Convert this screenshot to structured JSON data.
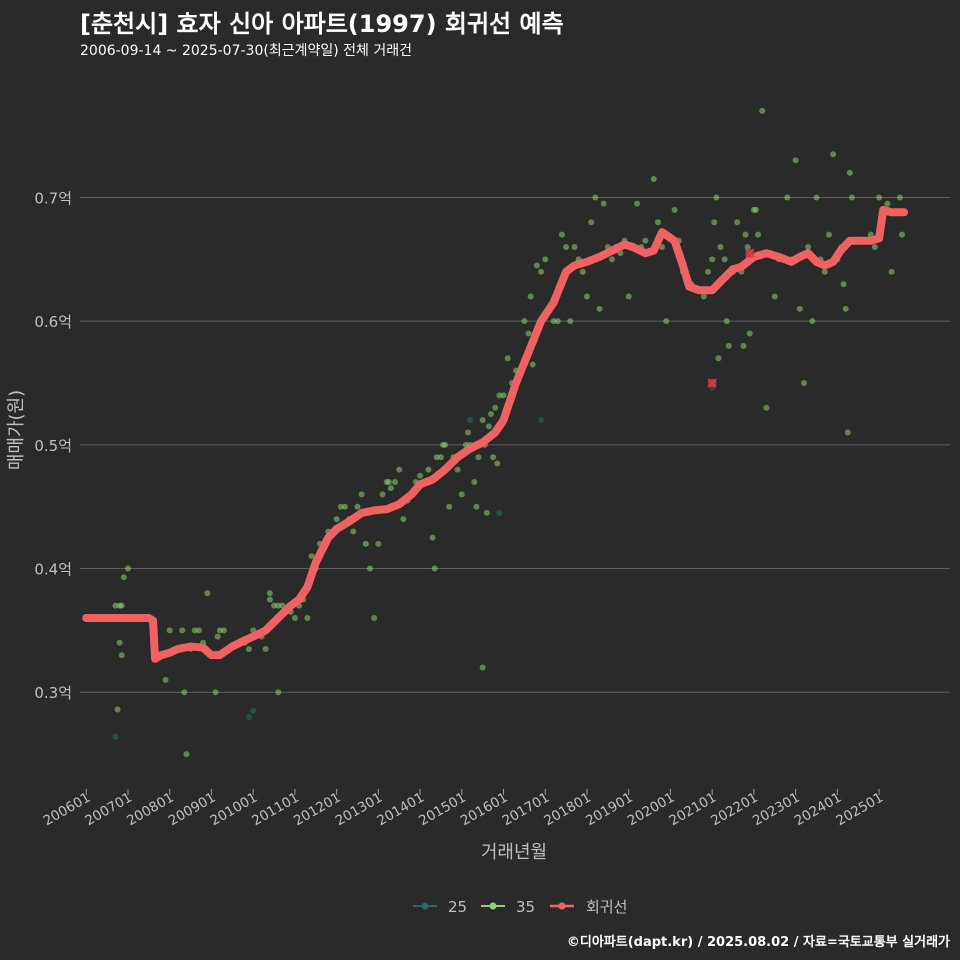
{
  "header": {
    "title": "[춘천시] 효자 신아 아파트(1997) 회귀선 예측",
    "subtitle": "2006-09-14 ~ 2025-07-30(최근계약일) 전체 거래건"
  },
  "footer": {
    "credit": "©디아파트(dapt.kr) / 2025.08.02 / 자료=국토교통부 실거래가"
  },
  "colors": {
    "background": "#2b2a2b",
    "grid": "#5e5e5e",
    "text": "#bfbfbf",
    "s25": "#1f6e68",
    "s35": "#8ad26a",
    "regression": "#f06262"
  },
  "chart_data": {
    "type": "scatter",
    "title": "[춘천시] 효자 신아 아파트(1997) 회귀선 예측",
    "xlabel": "거래년월",
    "ylabel": "매매가(원)",
    "xlim": [
      2005.85,
      2026.7
    ],
    "ylim": [
      0.225,
      0.795
    ],
    "y_ticks": [
      0.3,
      0.4,
      0.5,
      0.6,
      0.7
    ],
    "y_tick_labels": [
      "0.3억",
      "0.4억",
      "0.5억",
      "0.6억",
      "0.7억"
    ],
    "x_ticks": [
      2006,
      2007,
      2008,
      2009,
      2010,
      2011,
      2012,
      2013,
      2014,
      2015,
      2016,
      2017,
      2018,
      2019,
      2020,
      2021,
      2022,
      2023,
      2024,
      2025
    ],
    "x_tick_labels": [
      "200601",
      "200701",
      "200801",
      "200901",
      "201001",
      "201101",
      "201201",
      "201301",
      "201401",
      "201501",
      "201601",
      "201701",
      "201801",
      "201901",
      "202001",
      "202101",
      "202201",
      "202301",
      "202401",
      "202501"
    ],
    "legend_position": "bottom",
    "legend": [
      "25",
      "35",
      "회귀선"
    ],
    "series": [
      {
        "name": "25",
        "points": [
          [
            2006.7,
            0.264
          ],
          [
            2009.9,
            0.28
          ],
          [
            2010.0,
            0.285
          ],
          [
            2012.7,
            0.42
          ],
          [
            2015.2,
            0.52
          ],
          [
            2015.9,
            0.445
          ],
          [
            2016.9,
            0.52
          ],
          [
            2021.0,
            0.546
          ]
        ]
      },
      {
        "name": "35",
        "points": [
          [
            2006.7,
            0.37
          ],
          [
            2006.8,
            0.37
          ],
          [
            2006.75,
            0.286
          ],
          [
            2006.8,
            0.34
          ],
          [
            2006.85,
            0.37
          ],
          [
            2006.85,
            0.33
          ],
          [
            2006.9,
            0.393
          ],
          [
            2007.0,
            0.4
          ],
          [
            2007.6,
            0.35
          ],
          [
            2007.9,
            0.31
          ],
          [
            2008.0,
            0.35
          ],
          [
            2008.3,
            0.35
          ],
          [
            2008.35,
            0.3
          ],
          [
            2008.4,
            0.25
          ],
          [
            2008.5,
            0.335
          ],
          [
            2008.6,
            0.35
          ],
          [
            2008.7,
            0.35
          ],
          [
            2008.8,
            0.34
          ],
          [
            2008.9,
            0.38
          ],
          [
            2009.0,
            0.33
          ],
          [
            2009.1,
            0.3
          ],
          [
            2009.15,
            0.345
          ],
          [
            2009.2,
            0.35
          ],
          [
            2009.3,
            0.35
          ],
          [
            2009.8,
            0.34
          ],
          [
            2009.9,
            0.335
          ],
          [
            2010.0,
            0.35
          ],
          [
            2010.2,
            0.345
          ],
          [
            2010.3,
            0.335
          ],
          [
            2010.4,
            0.38
          ],
          [
            2010.4,
            0.375
          ],
          [
            2010.5,
            0.37
          ],
          [
            2010.6,
            0.37
          ],
          [
            2010.6,
            0.3
          ],
          [
            2010.7,
            0.37
          ],
          [
            2010.9,
            0.365
          ],
          [
            2011.0,
            0.36
          ],
          [
            2011.1,
            0.37
          ],
          [
            2011.2,
            0.375
          ],
          [
            2011.3,
            0.36
          ],
          [
            2011.4,
            0.41
          ],
          [
            2011.5,
            0.4
          ],
          [
            2011.6,
            0.42
          ],
          [
            2011.8,
            0.43
          ],
          [
            2011.9,
            0.43
          ],
          [
            2012.0,
            0.44
          ],
          [
            2012.1,
            0.45
          ],
          [
            2012.2,
            0.45
          ],
          [
            2012.3,
            0.44
          ],
          [
            2012.4,
            0.43
          ],
          [
            2012.5,
            0.45
          ],
          [
            2012.6,
            0.46
          ],
          [
            2012.7,
            0.42
          ],
          [
            2012.8,
            0.4
          ],
          [
            2012.9,
            0.36
          ],
          [
            2013.0,
            0.42
          ],
          [
            2013.1,
            0.46
          ],
          [
            2013.2,
            0.47
          ],
          [
            2013.25,
            0.47
          ],
          [
            2013.3,
            0.465
          ],
          [
            2013.4,
            0.47
          ],
          [
            2013.5,
            0.48
          ],
          [
            2013.6,
            0.44
          ],
          [
            2013.7,
            0.455
          ],
          [
            2013.8,
            0.46
          ],
          [
            2013.9,
            0.47
          ],
          [
            2014.0,
            0.475
          ],
          [
            2014.1,
            0.47
          ],
          [
            2014.2,
            0.48
          ],
          [
            2014.3,
            0.425
          ],
          [
            2014.35,
            0.4
          ],
          [
            2014.4,
            0.49
          ],
          [
            2014.5,
            0.49
          ],
          [
            2014.55,
            0.5
          ],
          [
            2014.6,
            0.5
          ],
          [
            2014.7,
            0.45
          ],
          [
            2014.8,
            0.49
          ],
          [
            2014.9,
            0.48
          ],
          [
            2015.0,
            0.46
          ],
          [
            2015.1,
            0.5
          ],
          [
            2015.15,
            0.51
          ],
          [
            2015.2,
            0.5
          ],
          [
            2015.3,
            0.47
          ],
          [
            2015.35,
            0.45
          ],
          [
            2015.4,
            0.49
          ],
          [
            2015.5,
            0.52
          ],
          [
            2015.5,
            0.32
          ],
          [
            2015.55,
            0.5
          ],
          [
            2015.6,
            0.445
          ],
          [
            2015.65,
            0.515
          ],
          [
            2015.7,
            0.525
          ],
          [
            2015.75,
            0.49
          ],
          [
            2015.8,
            0.53
          ],
          [
            2015.85,
            0.485
          ],
          [
            2015.9,
            0.54
          ],
          [
            2016.0,
            0.54
          ],
          [
            2016.1,
            0.57
          ],
          [
            2016.2,
            0.55
          ],
          [
            2016.3,
            0.56
          ],
          [
            2016.5,
            0.6
          ],
          [
            2016.6,
            0.59
          ],
          [
            2016.65,
            0.62
          ],
          [
            2016.7,
            0.565
          ],
          [
            2016.8,
            0.645
          ],
          [
            2016.9,
            0.64
          ],
          [
            2017.0,
            0.65
          ],
          [
            2017.1,
            0.61
          ],
          [
            2017.2,
            0.6
          ],
          [
            2017.3,
            0.6
          ],
          [
            2017.4,
            0.67
          ],
          [
            2017.5,
            0.66
          ],
          [
            2017.6,
            0.6
          ],
          [
            2017.7,
            0.66
          ],
          [
            2017.8,
            0.65
          ],
          [
            2017.9,
            0.64
          ],
          [
            2018.0,
            0.62
          ],
          [
            2018.1,
            0.68
          ],
          [
            2018.2,
            0.7
          ],
          [
            2018.3,
            0.61
          ],
          [
            2018.4,
            0.695
          ],
          [
            2018.5,
            0.66
          ],
          [
            2018.6,
            0.65
          ],
          [
            2018.7,
            0.66
          ],
          [
            2018.8,
            0.655
          ],
          [
            2018.9,
            0.665
          ],
          [
            2019.0,
            0.62
          ],
          [
            2019.1,
            0.66
          ],
          [
            2019.2,
            0.695
          ],
          [
            2019.3,
            0.66
          ],
          [
            2019.4,
            0.665
          ],
          [
            2019.6,
            0.715
          ],
          [
            2019.7,
            0.68
          ],
          [
            2019.8,
            0.66
          ],
          [
            2019.9,
            0.6
          ],
          [
            2020.1,
            0.69
          ],
          [
            2020.2,
            0.665
          ],
          [
            2020.3,
            0.64
          ],
          [
            2020.5,
            0.63
          ],
          [
            2020.6,
            0.625
          ],
          [
            2020.8,
            0.62
          ],
          [
            2020.9,
            0.64
          ],
          [
            2021.0,
            0.65
          ],
          [
            2021.05,
            0.68
          ],
          [
            2021.1,
            0.7
          ],
          [
            2021.15,
            0.57
          ],
          [
            2021.2,
            0.66
          ],
          [
            2021.3,
            0.65
          ],
          [
            2021.35,
            0.6
          ],
          [
            2021.4,
            0.58
          ],
          [
            2021.5,
            0.64
          ],
          [
            2021.6,
            0.68
          ],
          [
            2021.7,
            0.64
          ],
          [
            2021.75,
            0.58
          ],
          [
            2021.8,
            0.67
          ],
          [
            2021.85,
            0.66
          ],
          [
            2021.9,
            0.59
          ],
          [
            2022.0,
            0.69
          ],
          [
            2022.05,
            0.69
          ],
          [
            2022.1,
            0.67
          ],
          [
            2022.2,
            0.77
          ],
          [
            2022.3,
            0.53
          ],
          [
            2022.4,
            0.655
          ],
          [
            2022.5,
            0.62
          ],
          [
            2022.6,
            0.65
          ],
          [
            2022.8,
            0.7
          ],
          [
            2022.9,
            0.65
          ],
          [
            2023.0,
            0.73
          ],
          [
            2023.1,
            0.61
          ],
          [
            2023.2,
            0.55
          ],
          [
            2023.3,
            0.66
          ],
          [
            2023.4,
            0.6
          ],
          [
            2023.5,
            0.7
          ],
          [
            2023.6,
            0.65
          ],
          [
            2023.7,
            0.64
          ],
          [
            2023.8,
            0.67
          ],
          [
            2023.9,
            0.735
          ],
          [
            2024.0,
            0.65
          ],
          [
            2024.1,
            0.66
          ],
          [
            2024.15,
            0.63
          ],
          [
            2024.2,
            0.61
          ],
          [
            2024.25,
            0.51
          ],
          [
            2024.3,
            0.72
          ],
          [
            2024.35,
            0.7
          ],
          [
            2024.4,
            0.665
          ],
          [
            2024.6,
            0.665
          ],
          [
            2024.8,
            0.67
          ],
          [
            2024.9,
            0.66
          ],
          [
            2025.0,
            0.7
          ],
          [
            2025.1,
            0.69
          ],
          [
            2025.2,
            0.695
          ],
          [
            2025.3,
            0.64
          ],
          [
            2025.5,
            0.7
          ],
          [
            2025.55,
            0.67
          ]
        ]
      }
    ],
    "regression": [
      [
        2006.0,
        0.36
      ],
      [
        2006.5,
        0.36
      ],
      [
        2007.0,
        0.36
      ],
      [
        2007.5,
        0.36
      ],
      [
        2007.6,
        0.358
      ],
      [
        2007.65,
        0.327
      ],
      [
        2007.8,
        0.33
      ],
      [
        2008.0,
        0.332
      ],
      [
        2008.2,
        0.335
      ],
      [
        2008.5,
        0.337
      ],
      [
        2008.8,
        0.336
      ],
      [
        2009.0,
        0.33
      ],
      [
        2009.2,
        0.33
      ],
      [
        2009.5,
        0.337
      ],
      [
        2009.8,
        0.342
      ],
      [
        2010.0,
        0.345
      ],
      [
        2010.3,
        0.35
      ],
      [
        2010.6,
        0.36
      ],
      [
        2010.9,
        0.37
      ],
      [
        2011.1,
        0.375
      ],
      [
        2011.3,
        0.385
      ],
      [
        2011.5,
        0.405
      ],
      [
        2011.8,
        0.425
      ],
      [
        2012.0,
        0.432
      ],
      [
        2012.3,
        0.438
      ],
      [
        2012.6,
        0.445
      ],
      [
        2012.9,
        0.447
      ],
      [
        2013.2,
        0.448
      ],
      [
        2013.5,
        0.452
      ],
      [
        2013.8,
        0.46
      ],
      [
        2014.0,
        0.468
      ],
      [
        2014.3,
        0.472
      ],
      [
        2014.6,
        0.48
      ],
      [
        2014.9,
        0.49
      ],
      [
        2015.2,
        0.497
      ],
      [
        2015.5,
        0.502
      ],
      [
        2015.8,
        0.51
      ],
      [
        2016.0,
        0.52
      ],
      [
        2016.3,
        0.55
      ],
      [
        2016.6,
        0.575
      ],
      [
        2016.9,
        0.6
      ],
      [
        2017.2,
        0.615
      ],
      [
        2017.5,
        0.64
      ],
      [
        2017.7,
        0.645
      ],
      [
        2018.0,
        0.648
      ],
      [
        2018.3,
        0.652
      ],
      [
        2018.6,
        0.657
      ],
      [
        2018.9,
        0.662
      ],
      [
        2019.1,
        0.66
      ],
      [
        2019.4,
        0.655
      ],
      [
        2019.6,
        0.657
      ],
      [
        2019.8,
        0.672
      ],
      [
        2020.1,
        0.665
      ],
      [
        2020.3,
        0.645
      ],
      [
        2020.45,
        0.628
      ],
      [
        2020.7,
        0.625
      ],
      [
        2021.0,
        0.625
      ],
      [
        2021.2,
        0.632
      ],
      [
        2021.5,
        0.642
      ],
      [
        2021.7,
        0.644
      ],
      [
        2022.0,
        0.652
      ],
      [
        2022.3,
        0.655
      ],
      [
        2022.6,
        0.652
      ],
      [
        2022.9,
        0.648
      ],
      [
        2023.1,
        0.652
      ],
      [
        2023.3,
        0.655
      ],
      [
        2023.5,
        0.648
      ],
      [
        2023.7,
        0.645
      ],
      [
        2023.9,
        0.648
      ],
      [
        2024.1,
        0.658
      ],
      [
        2024.3,
        0.665
      ],
      [
        2024.5,
        0.665
      ],
      [
        2024.8,
        0.665
      ],
      [
        2025.0,
        0.667
      ],
      [
        2025.1,
        0.69
      ],
      [
        2025.3,
        0.688
      ],
      [
        2025.6,
        0.688
      ]
    ],
    "outliers": [
      [
        2021.0,
        0.55
      ],
      [
        2021.9,
        0.655
      ]
    ]
  }
}
